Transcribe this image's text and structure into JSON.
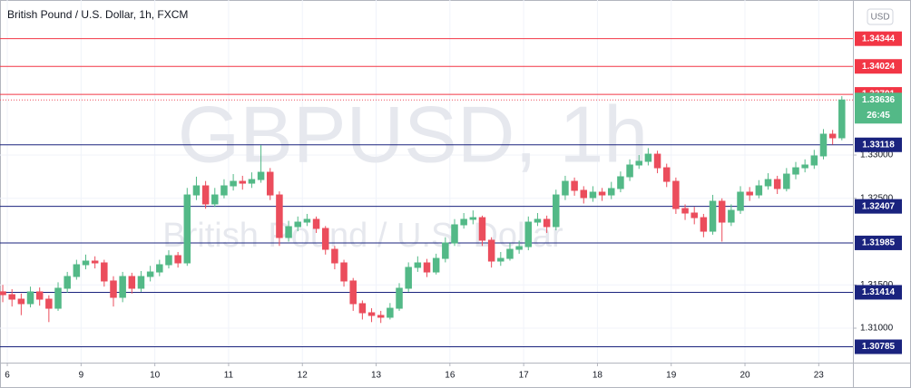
{
  "chart_data": {
    "type": "candlestick",
    "title": "British Pound / U.S. Dollar, 1h, FXCM",
    "watermark": "GBPUSD, 1h",
    "watermark_subtitle": "British Pound / U.S. Dollar",
    "currency": "USD",
    "up_color": "#53b987",
    "down_color": "#eb4d5c",
    "grid": true,
    "ylim": [
      1.30602,
      1.34791
    ],
    "yticks": [
      {
        "value": 1.31,
        "label": "1.31000"
      },
      {
        "value": 1.315,
        "label": "1.31500"
      },
      {
        "value": 1.325,
        "label": "1.32500"
      },
      {
        "value": 1.33,
        "label": "1.33000"
      }
    ],
    "xlim": [
      -0.3,
      92.2
    ],
    "xticks": [
      {
        "value": 0,
        "label": "6"
      },
      {
        "value": 8,
        "label": "9"
      },
      {
        "value": 16,
        "label": "10"
      },
      {
        "value": 24,
        "label": "11"
      },
      {
        "value": 32,
        "label": "12"
      },
      {
        "value": 40,
        "label": "13"
      },
      {
        "value": 48,
        "label": "16"
      },
      {
        "value": 56,
        "label": "17"
      },
      {
        "value": 64,
        "label": "18"
      },
      {
        "value": 72,
        "label": "19"
      },
      {
        "value": 80,
        "label": "20"
      },
      {
        "value": 88,
        "label": "23"
      }
    ],
    "levels": [
      {
        "value": 1.34344,
        "color": "#f23645"
      },
      {
        "value": 1.34024,
        "color": "#f23645"
      },
      {
        "value": 1.33701,
        "color": "#f23645"
      },
      {
        "value": 1.33118,
        "color": "#1a237e"
      },
      {
        "value": 1.32407,
        "color": "#1a237e"
      },
      {
        "value": 1.31985,
        "color": "#1a237e"
      },
      {
        "value": 1.31414,
        "color": "#1a237e"
      },
      {
        "value": 1.30785,
        "color": "#1a237e"
      }
    ],
    "last_price": 1.33636,
    "countdown": "26:45",
    "last_color": "#53b987",
    "ohlc": [
      [
        1.3142,
        1.315,
        1.313,
        1.31387
      ],
      [
        1.31387,
        1.3145,
        1.3125,
        1.31335
      ],
      [
        1.31335,
        1.314,
        1.3115,
        1.31283
      ],
      [
        1.31283,
        1.3148,
        1.3124,
        1.31419
      ],
      [
        1.31419,
        1.3147,
        1.3126,
        1.31335
      ],
      [
        1.31335,
        1.3138,
        1.3107,
        1.3123
      ],
      [
        1.3123,
        1.3153,
        1.312,
        1.31461
      ],
      [
        1.31461,
        1.3165,
        1.3141,
        1.31597
      ],
      [
        1.31597,
        1.3179,
        1.3156,
        1.31733
      ],
      [
        1.31733,
        1.3185,
        1.3168,
        1.31775
      ],
      [
        1.31775,
        1.3183,
        1.3169,
        1.31754
      ],
      [
        1.31754,
        1.3179,
        1.3148,
        1.31545
      ],
      [
        1.31545,
        1.316,
        1.3125,
        1.31356
      ],
      [
        1.31356,
        1.3165,
        1.313,
        1.31597
      ],
      [
        1.31597,
        1.3164,
        1.314,
        1.31461
      ],
      [
        1.31461,
        1.3166,
        1.3142,
        1.31597
      ],
      [
        1.31597,
        1.3172,
        1.3154,
        1.31649
      ],
      [
        1.31649,
        1.3179,
        1.316,
        1.31733
      ],
      [
        1.31733,
        1.319,
        1.3169,
        1.31838
      ],
      [
        1.31838,
        1.3188,
        1.317,
        1.31754
      ],
      [
        1.31754,
        1.3262,
        1.3172,
        1.32539
      ],
      [
        1.32539,
        1.3275,
        1.3248,
        1.32644
      ],
      [
        1.32644,
        1.327,
        1.3238,
        1.32435
      ],
      [
        1.32435,
        1.3262,
        1.324,
        1.32539
      ],
      [
        1.32539,
        1.3272,
        1.325,
        1.32644
      ],
      [
        1.32644,
        1.3278,
        1.3259,
        1.32696
      ],
      [
        1.32696,
        1.3276,
        1.326,
        1.32675
      ],
      [
        1.32675,
        1.328,
        1.3262,
        1.32717
      ],
      [
        1.32717,
        1.33115,
        1.3268,
        1.32801
      ],
      [
        1.32801,
        1.3285,
        1.3248,
        1.32539
      ],
      [
        1.32539,
        1.3258,
        1.3195,
        1.32047
      ],
      [
        1.32047,
        1.3224,
        1.32,
        1.32173
      ],
      [
        1.32173,
        1.3229,
        1.3212,
        1.32225
      ],
      [
        1.32225,
        1.3232,
        1.3218,
        1.32257
      ],
      [
        1.32257,
        1.3229,
        1.321,
        1.32152
      ],
      [
        1.32152,
        1.3218,
        1.3185,
        1.31911
      ],
      [
        1.31911,
        1.3195,
        1.3168,
        1.31754
      ],
      [
        1.31754,
        1.3179,
        1.3148,
        1.31545
      ],
      [
        1.31545,
        1.3158,
        1.312,
        1.31283
      ],
      [
        1.31283,
        1.3132,
        1.311,
        1.31178
      ],
      [
        1.31178,
        1.3123,
        1.3107,
        1.31147
      ],
      [
        1.31147,
        1.312,
        1.3106,
        1.31126
      ],
      [
        1.31126,
        1.3129,
        1.311,
        1.3123
      ],
      [
        1.3123,
        1.3152,
        1.312,
        1.31461
      ],
      [
        1.31461,
        1.3176,
        1.3142,
        1.31702
      ],
      [
        1.31702,
        1.3183,
        1.3165,
        1.31754
      ],
      [
        1.31754,
        1.318,
        1.3159,
        1.31649
      ],
      [
        1.31649,
        1.3186,
        1.3162,
        1.31806
      ],
      [
        1.31806,
        1.3205,
        1.3176,
        1.31984
      ],
      [
        1.31984,
        1.3226,
        1.3195,
        1.32194
      ],
      [
        1.32194,
        1.3233,
        1.3215,
        1.32257
      ],
      [
        1.32257,
        1.3236,
        1.322,
        1.32277
      ],
      [
        1.32277,
        1.323,
        1.3195,
        1.32016
      ],
      [
        1.32016,
        1.3205,
        1.317,
        1.31775
      ],
      [
        1.31775,
        1.3188,
        1.3172,
        1.31806
      ],
      [
        1.31806,
        1.3198,
        1.3178,
        1.31911
      ],
      [
        1.31911,
        1.3201,
        1.3186,
        1.31942
      ],
      [
        1.31942,
        1.3229,
        1.319,
        1.32225
      ],
      [
        1.32225,
        1.3233,
        1.3218,
        1.32257
      ],
      [
        1.32257,
        1.323,
        1.321,
        1.32173
      ],
      [
        1.32173,
        1.326,
        1.3213,
        1.32539
      ],
      [
        1.32539,
        1.3276,
        1.3248,
        1.32696
      ],
      [
        1.32696,
        1.3274,
        1.3253,
        1.32592
      ],
      [
        1.32592,
        1.3264,
        1.3244,
        1.32508
      ],
      [
        1.32508,
        1.3264,
        1.3246,
        1.32571
      ],
      [
        1.32571,
        1.3262,
        1.3247,
        1.32539
      ],
      [
        1.32539,
        1.3269,
        1.3249,
        1.32613
      ],
      [
        1.32613,
        1.3281,
        1.3257,
        1.32749
      ],
      [
        1.32749,
        1.3295,
        1.327,
        1.32885
      ],
      [
        1.32885,
        1.33,
        1.3284,
        1.32927
      ],
      [
        1.32927,
        1.3308,
        1.3288,
        1.3301
      ],
      [
        1.3301,
        1.3305,
        1.3279,
        1.32853
      ],
      [
        1.32853,
        1.329,
        1.3263,
        1.32696
      ],
      [
        1.32696,
        1.3274,
        1.3232,
        1.32382
      ],
      [
        1.32382,
        1.3243,
        1.3225,
        1.3233
      ],
      [
        1.3233,
        1.324,
        1.322,
        1.32277
      ],
      [
        1.32277,
        1.3232,
        1.3205,
        1.3212
      ],
      [
        1.3212,
        1.3254,
        1.3208,
        1.32466
      ],
      [
        1.32466,
        1.325,
        1.32,
        1.32225
      ],
      [
        1.32225,
        1.3243,
        1.3218,
        1.32361
      ],
      [
        1.32361,
        1.3264,
        1.3232,
        1.32571
      ],
      [
        1.32571,
        1.3263,
        1.3247,
        1.32539
      ],
      [
        1.32539,
        1.3271,
        1.325,
        1.32644
      ],
      [
        1.32644,
        1.3279,
        1.326,
        1.32717
      ],
      [
        1.32717,
        1.3276,
        1.3255,
        1.32613
      ],
      [
        1.32613,
        1.3285,
        1.3258,
        1.3278
      ],
      [
        1.3278,
        1.3292,
        1.3272,
        1.32853
      ],
      [
        1.32853,
        1.3295,
        1.328,
        1.32885
      ],
      [
        1.32885,
        1.3306,
        1.3284,
        1.3299
      ],
      [
        1.3299,
        1.333,
        1.3295,
        1.33241
      ],
      [
        1.33241,
        1.3329,
        1.3312,
        1.33199
      ],
      [
        1.33199,
        1.3368,
        1.3317,
        1.33636
      ]
    ]
  }
}
